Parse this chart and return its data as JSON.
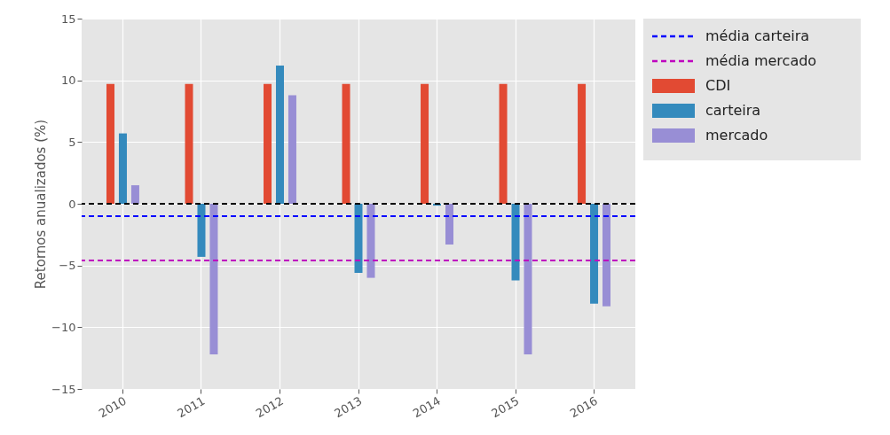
{
  "chart_data": {
    "type": "bar",
    "ylabel": "Retornos anualizados (%)",
    "categories": [
      "2010",
      "2011",
      "2012",
      "2013",
      "2014",
      "2015",
      "2016"
    ],
    "series": [
      {
        "name": "CDI",
        "color": "#e24a33",
        "values": [
          9.7,
          9.7,
          9.7,
          9.7,
          9.7,
          9.7,
          9.7
        ]
      },
      {
        "name": "carteira",
        "color": "#348abd",
        "values": [
          5.7,
          -4.3,
          11.2,
          -5.6,
          -0.15,
          -6.2,
          -8.1
        ]
      },
      {
        "name": "mercado",
        "color": "#988ed5",
        "values": [
          1.5,
          -12.2,
          8.8,
          -6.0,
          -3.3,
          -12.2,
          -8.3
        ]
      }
    ],
    "ylim": [
      -15,
      15
    ],
    "yticks": [
      -15,
      -10,
      -5,
      0,
      5,
      10,
      15
    ],
    "grid": true,
    "legend": "right",
    "ref_lines": [
      {
        "axis": "y",
        "value": 0,
        "color": "#000000",
        "line_style": "dashed"
      },
      {
        "axis": "y",
        "value": -1.0,
        "label": "média carteira",
        "color": "#0000ff",
        "line_style": "dashed"
      },
      {
        "axis": "y",
        "value": -4.6,
        "label": "média mercado",
        "color": "#bf00bf",
        "line_style": "dashed"
      }
    ]
  }
}
